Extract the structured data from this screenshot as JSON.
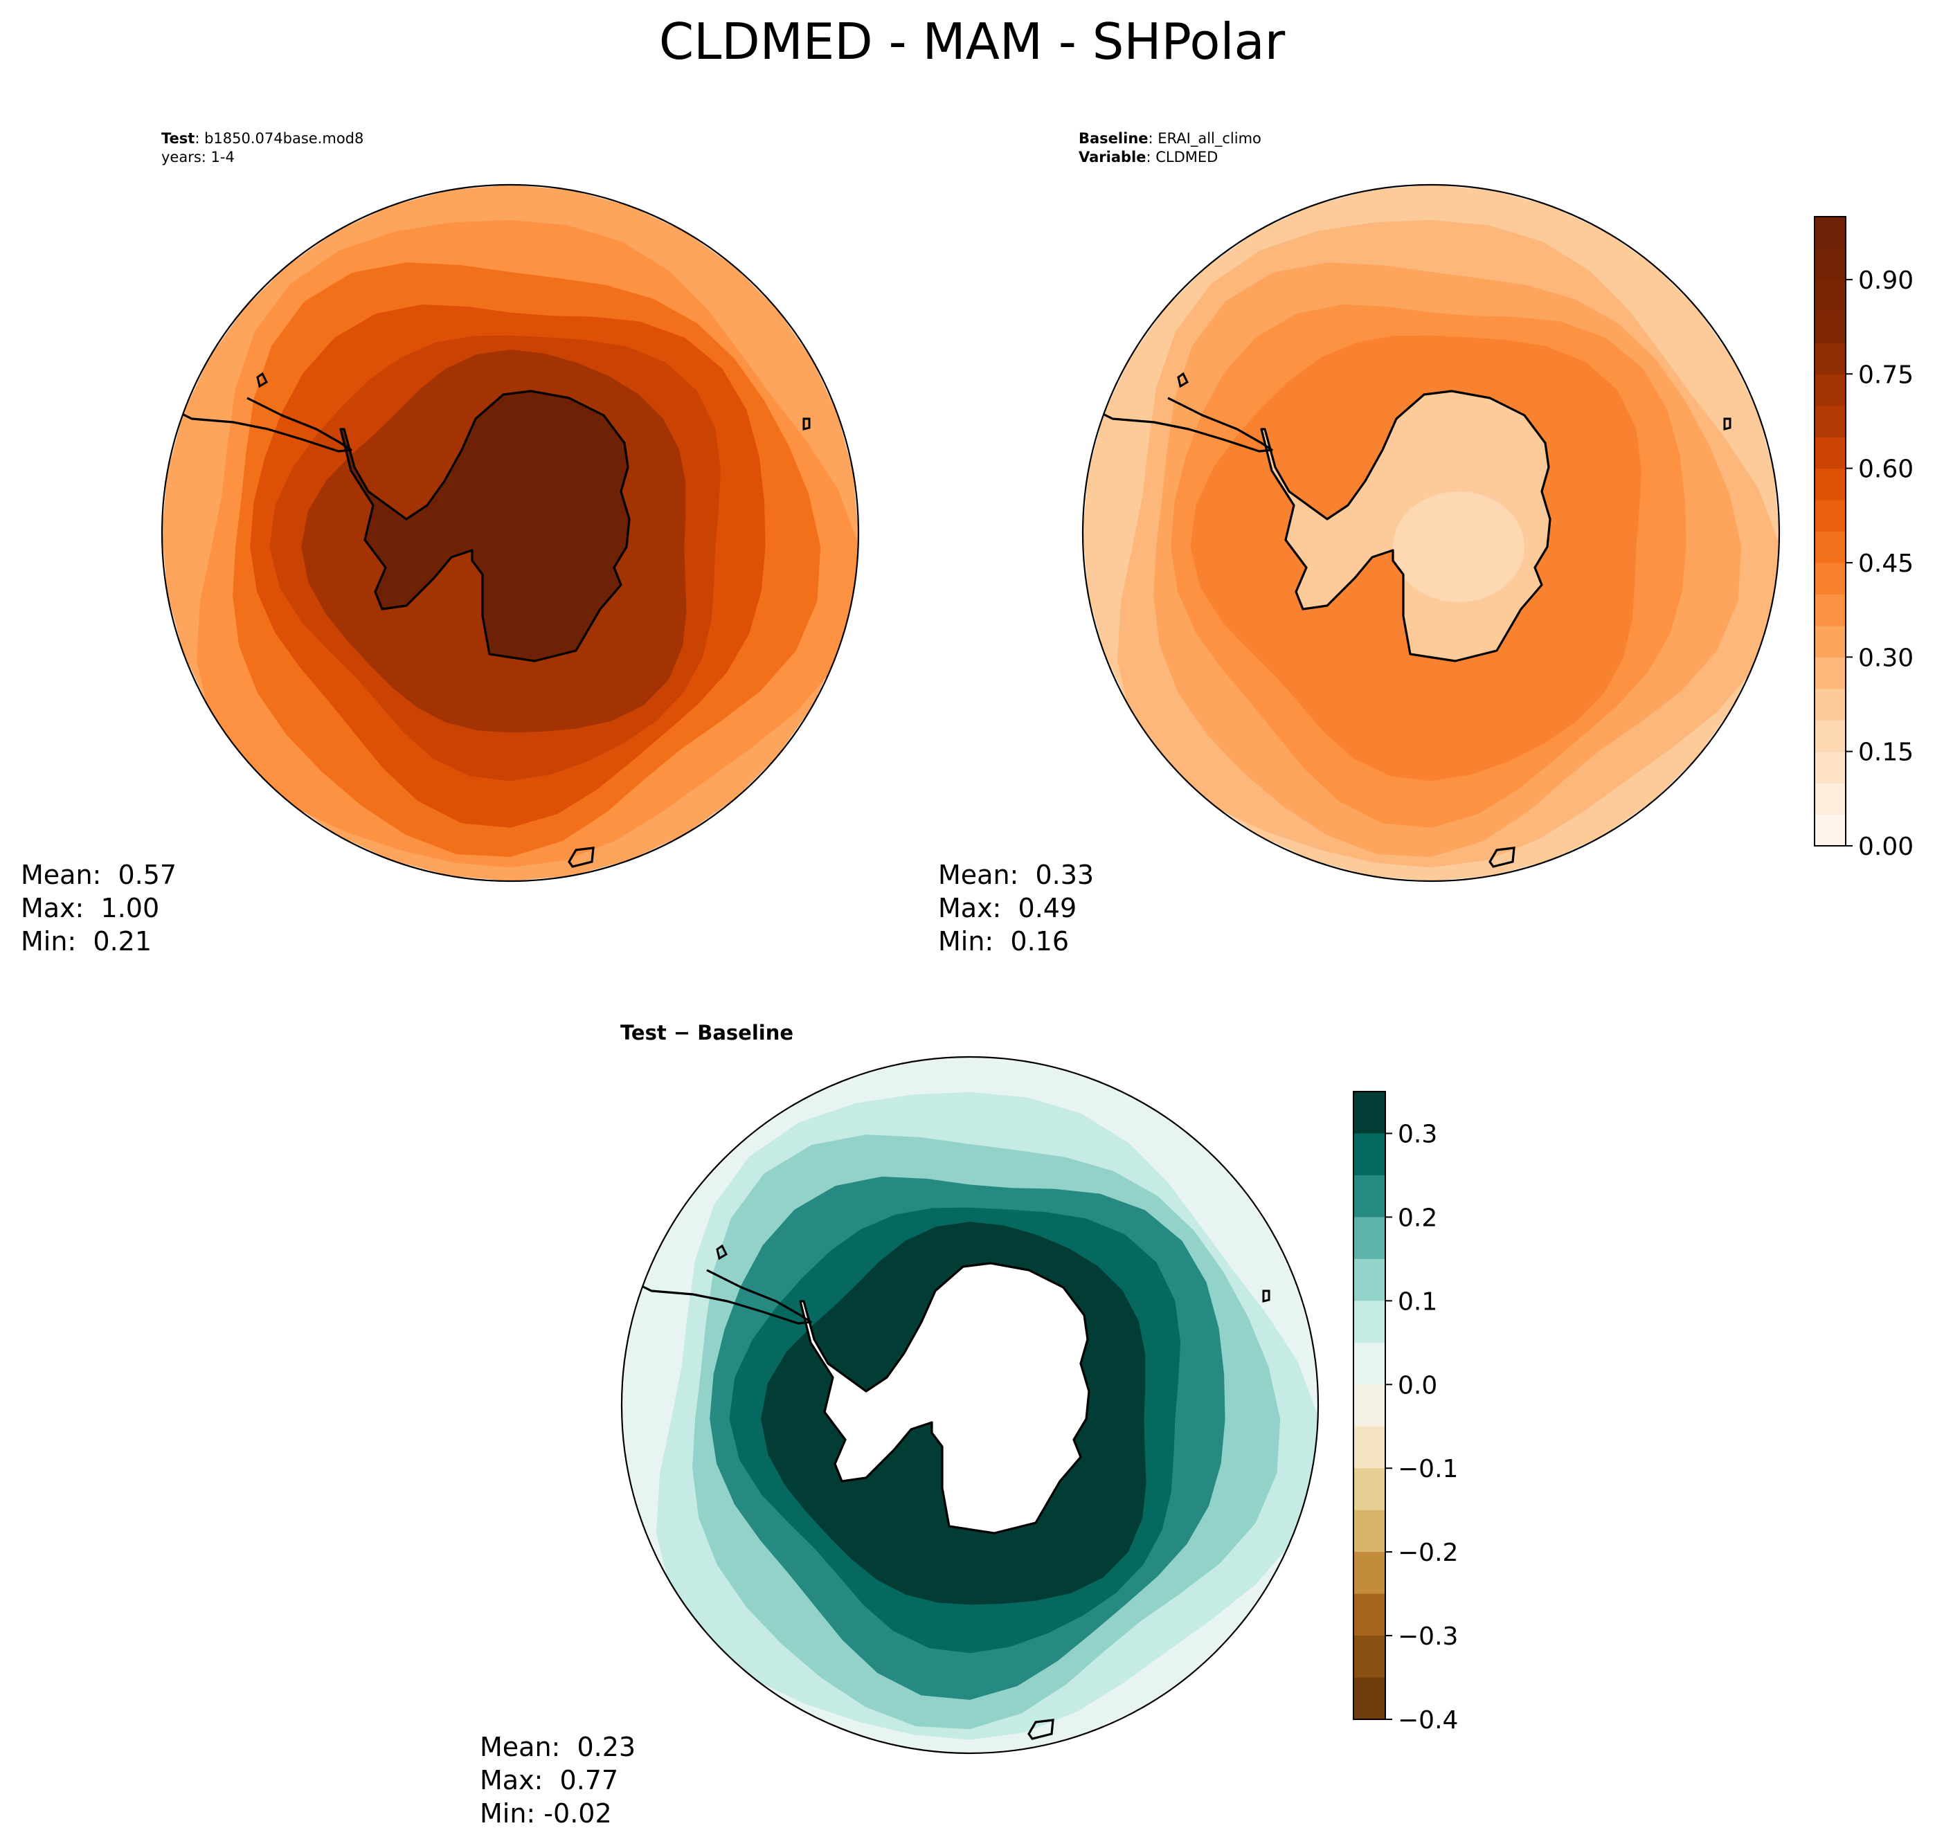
{
  "title": "CLDMED - MAM - SHPolar",
  "panels": {
    "test": {
      "label_key": "Test",
      "label_value": "b1850.074base.mod8",
      "years": "years: 1-4",
      "mean": "Mean:  0.57",
      "max": "Max:  1.00",
      "min": "Min:  0.21"
    },
    "baseline": {
      "label_key": "Baseline",
      "label_value": "ERAI_all_climo",
      "variable_key": "Variable",
      "variable_value": "CLDMED",
      "mean": "Mean:  0.33",
      "max": "Max:  0.49",
      "min": "Min:  0.16"
    },
    "diff": {
      "title": "Test − Baseline",
      "mean": "Mean:  0.23",
      "max": "Max:  0.77",
      "min": "Min: -0.02"
    }
  },
  "chart_data": [
    {
      "type": "heatmap",
      "projection": "south-polar-stereographic",
      "title": "Test: b1850.074base.mod8 (years: 1-4)",
      "variable": "CLDMED",
      "range": [
        0.0,
        1.0
      ],
      "stats": {
        "mean": 0.57,
        "max": 1.0,
        "min": 0.21
      },
      "regional_values": {
        "southern_ocean": 0.62,
        "mid_latitudes": 0.45,
        "antarctic_interior": 0.95,
        "outer_edge": 0.3
      }
    },
    {
      "type": "heatmap",
      "projection": "south-polar-stereographic",
      "title": "Baseline: ERAI_all_climo",
      "variable": "CLDMED",
      "range": [
        0.0,
        1.0
      ],
      "stats": {
        "mean": 0.33,
        "max": 0.49,
        "min": 0.16
      },
      "regional_values": {
        "southern_ocean": 0.4,
        "mid_latitudes": 0.32,
        "antarctic_interior": 0.2,
        "outer_edge": 0.22
      }
    },
    {
      "type": "heatmap",
      "projection": "south-polar-stereographic",
      "title": "Test − Baseline",
      "variable": "CLDMED difference",
      "range": [
        -0.4,
        0.35
      ],
      "stats": {
        "mean": 0.23,
        "max": 0.77,
        "min": -0.02
      },
      "regional_values": {
        "southern_ocean": 0.27,
        "mid_latitudes": 0.12,
        "outer_edge": 0.04
      }
    }
  ],
  "colorbars": {
    "sequential": {
      "name": "Oranges",
      "vmin": 0.0,
      "vmax": 1.0,
      "levels": [
        0.0,
        0.05,
        0.1,
        0.15,
        0.2,
        0.25,
        0.3,
        0.35,
        0.4,
        0.45,
        0.5,
        0.55,
        0.6,
        0.65,
        0.7,
        0.75,
        0.8,
        0.85,
        0.9,
        0.95,
        1.0
      ],
      "ticks": [
        0.0,
        0.15,
        0.3,
        0.45,
        0.6,
        0.75,
        0.9
      ],
      "tick_labels": [
        "0.00",
        "0.15",
        "0.30",
        "0.45",
        "0.60",
        "0.75",
        "0.90"
      ],
      "colors": [
        "#fff5eb",
        "#feeddb",
        "#fee3c8",
        "#fdd8b2",
        "#fdca99",
        "#fdb77a",
        "#fda45d",
        "#fd9243",
        "#f98230",
        "#f3701b",
        "#ea600f",
        "#dd5006",
        "#cb4302",
        "#b23a03",
        "#a33303",
        "#8f2d04",
        "#7f2704",
        "#7a2504",
        "#742304",
        "#6e2104"
      ]
    },
    "diverging": {
      "name": "BrBG",
      "vmin": -0.4,
      "vmax": 0.35,
      "ticks": [
        0.3,
        0.2,
        0.1,
        0.0,
        -0.1,
        -0.2,
        -0.3,
        -0.4
      ],
      "tick_labels": [
        "0.3",
        "0.2",
        "0.1",
        "0.0",
        "−0.1",
        "−0.2",
        "−0.3",
        "−0.4"
      ],
      "colors": [
        "#023d35",
        "#05695f",
        "#268a82",
        "#5db3a8",
        "#92d2c8",
        "#c6ebe5",
        "#e7f4f2",
        "#f5f0e4",
        "#f4e4c1",
        "#e7cf94",
        "#d6b56a",
        "#c28c3b",
        "#a5661c",
        "#8a5012",
        "#6f3d0c"
      ]
    }
  },
  "colors": {
    "coast": "#000000",
    "missing": "#ffffff"
  }
}
